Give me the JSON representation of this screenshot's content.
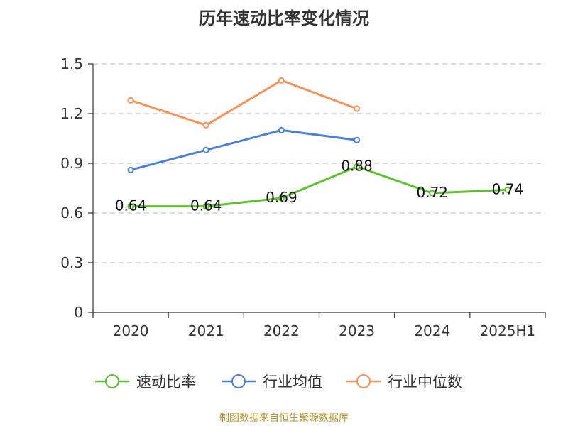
{
  "title": "历年速动比率变化情况",
  "source": "制图数据来自恒生聚源数据库",
  "chart_data": {
    "type": "line",
    "title": "历年速动比率变化情况",
    "categories": [
      "2020",
      "2021",
      "2022",
      "2023",
      "2024",
      "2025H1"
    ],
    "y_ticks": [
      "0",
      "0.3",
      "0.6",
      "0.9",
      "1.2",
      "1.5"
    ],
    "ylim": [
      0,
      1.5
    ],
    "grid": true,
    "legend_position": "bottom",
    "series": [
      {
        "name": "速动比率",
        "color": "#5cc12b",
        "values": [
          0.64,
          0.64,
          0.69,
          0.88,
          0.72,
          0.74
        ],
        "labels": [
          "0.64",
          "0.64",
          "0.69",
          "0.88",
          "0.72",
          "0.74"
        ]
      },
      {
        "name": "行业均值",
        "color": "#4a7fdb",
        "values": [
          0.86,
          0.98,
          1.1,
          1.04,
          null,
          null
        ]
      },
      {
        "name": "行业中位数",
        "color": "#f79158",
        "values": [
          1.28,
          1.13,
          1.4,
          1.23,
          null,
          null
        ]
      }
    ]
  }
}
